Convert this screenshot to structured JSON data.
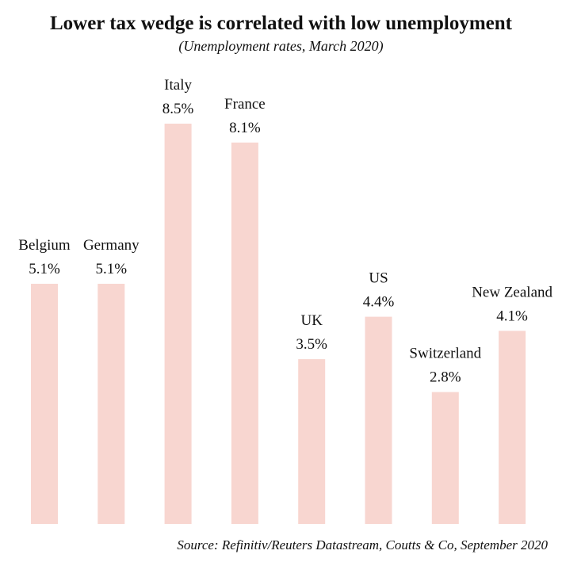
{
  "colors": {
    "bar": "#f8d6d0",
    "text": "#111111",
    "background": "#ffffff"
  },
  "chart_data": {
    "type": "bar",
    "title": "Lower tax wedge is correlated with low unemployment",
    "subtitle": "(Unemployment rates, March 2020)",
    "source": "Source: Refinitiv/Reuters Datastream, Coutts & Co, September 2020",
    "categories": [
      "Belgium",
      "Germany",
      "Italy",
      "France",
      "UK",
      "US",
      "Switzerland",
      "New Zealand"
    ],
    "values": [
      5.1,
      5.1,
      8.5,
      8.1,
      3.5,
      4.4,
      2.8,
      4.1
    ],
    "value_labels": [
      "5.1%",
      "5.1%",
      "8.5%",
      "8.1%",
      "3.5%",
      "4.4%",
      "2.8%",
      "4.1%"
    ],
    "ylim": [
      0,
      8.5
    ],
    "grid": false,
    "legend": "none"
  }
}
